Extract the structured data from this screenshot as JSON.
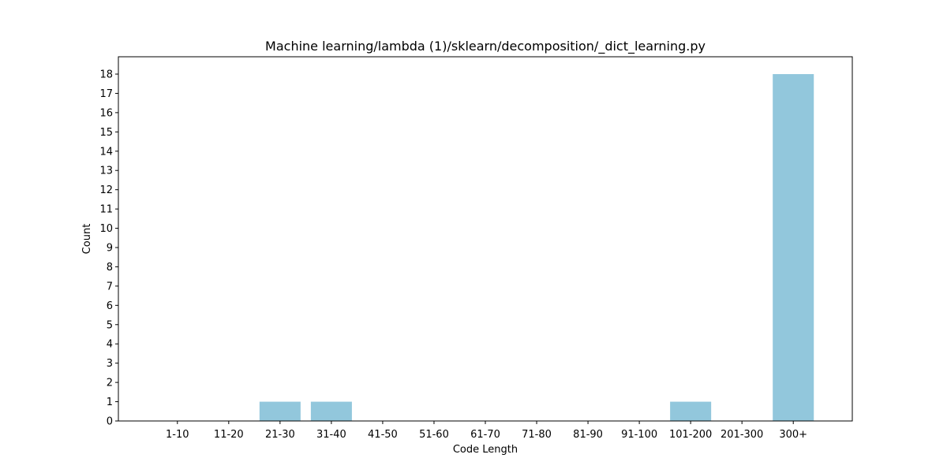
{
  "chart_data": {
    "type": "bar",
    "title": "Machine learning/lambda (1)/sklearn/decomposition/_dict_learning.py",
    "xlabel": "Code Length",
    "ylabel": "Count",
    "categories": [
      "1-10",
      "11-20",
      "21-30",
      "31-40",
      "41-50",
      "51-60",
      "61-70",
      "71-80",
      "81-90",
      "91-100",
      "101-200",
      "201-300",
      "300+"
    ],
    "values": [
      0,
      0,
      1,
      1,
      0,
      0,
      0,
      0,
      0,
      0,
      1,
      0,
      18
    ],
    "ylim": [
      0,
      18.9
    ],
    "yticks": [
      0,
      1,
      2,
      3,
      4,
      5,
      6,
      7,
      8,
      9,
      10,
      11,
      12,
      13,
      14,
      15,
      16,
      17,
      18
    ],
    "grid": false,
    "bar_color": "#92c7dc"
  }
}
